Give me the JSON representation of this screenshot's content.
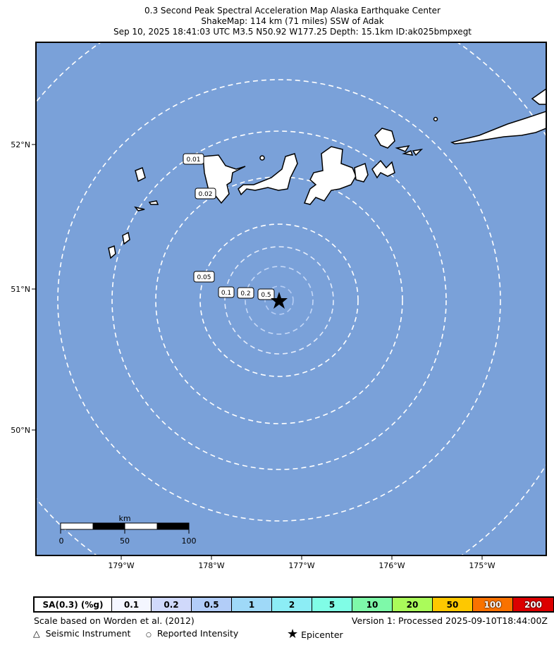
{
  "title": {
    "line1": "0.3 Second Peak Spectral Acceleration Map Alaska Earthquake Center",
    "line2": "ShakeMap: 114 km (71 miles) SSW of Adak",
    "line3": "Sep 10, 2025 18:41:03 UTC M3.5 N50.92 W177.25 Depth: 15.1km ID:ak025bmpxegt"
  },
  "map": {
    "ocean_color": "#7aa1d9",
    "lat_labels": [
      "52°N",
      "51°N",
      "50°N"
    ],
    "lon_labels": [
      "179°W",
      "178°W",
      "177°W",
      "176°W",
      "175°W"
    ],
    "contour_labels": [
      "0.01",
      "0.02",
      "0.05",
      "0.1",
      "0.2",
      "0.5"
    ],
    "epicenter_icon": "star-icon",
    "scale_bar": {
      "unit": "km",
      "ticks": [
        "0",
        "50",
        "100"
      ]
    }
  },
  "legend": {
    "header": "SA(0.3) (%g)",
    "cells": [
      {
        "label": "0.1",
        "color": "#f4f6ff"
      },
      {
        "label": "0.2",
        "color": "#d0d9fb"
      },
      {
        "label": "0.5",
        "color": "#b2cdf8"
      },
      {
        "label": "1",
        "color": "#9fd9f8"
      },
      {
        "label": "2",
        "color": "#8cedf5"
      },
      {
        "label": "5",
        "color": "#80fde6"
      },
      {
        "label": "10",
        "color": "#7ef9a9"
      },
      {
        "label": "20",
        "color": "#aafb5a"
      },
      {
        "label": "50",
        "color": "#fec800"
      },
      {
        "label": "100",
        "color": "#f97200"
      },
      {
        "label": "200",
        "color": "#dc0000"
      }
    ]
  },
  "footer": {
    "scale_note": "Scale based on Worden et al. (2012)",
    "version": "Version 1: Processed 2025-09-10T18:44:00Z",
    "seismic_instrument": "Seismic Instrument",
    "reported_intensity": "Reported Intensity",
    "epicenter": "Epicenter"
  }
}
